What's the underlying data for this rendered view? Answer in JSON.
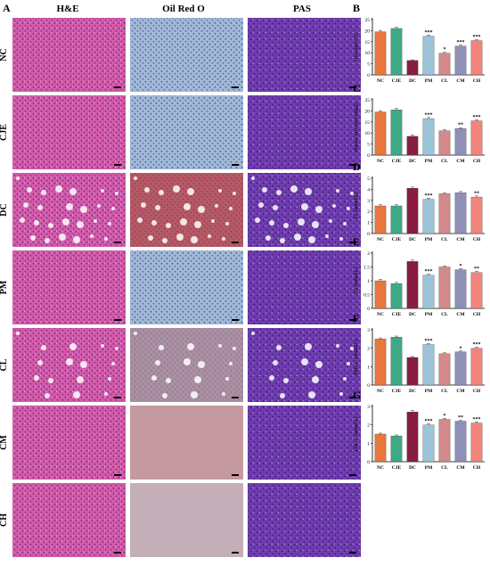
{
  "figure": {
    "panel_letters": [
      "A",
      "B",
      "C",
      "D",
      "E",
      "F",
      "G"
    ],
    "column_titles": [
      "H&E",
      "Oil Red O",
      "PAS"
    ],
    "row_labels": [
      "NC",
      "CJE",
      "DC",
      "PM",
      "CL",
      "CM",
      "CH"
    ]
  },
  "colors": {
    "he": "#d35aa8",
    "he_light": "#f0b8dc",
    "oro": "#9fb8d8",
    "oro_red": "#c0282a",
    "pas": "#6e3cae",
    "pas_light": "#c8a8e4",
    "bars": [
      "#e9763a",
      "#3daa85",
      "#8a1c42",
      "#9cc4d8",
      "#d48a8a",
      "#8f90b8",
      "#f2847c"
    ]
  },
  "chart_data": [
    {
      "panel": "B",
      "type": "bar",
      "categories": [
        "NC",
        "CJE",
        "DC",
        "PM",
        "CL",
        "CM",
        "CH"
      ],
      "values": [
        19.5,
        21,
        6.5,
        17.5,
        9.8,
        13,
        15.5
      ],
      "errors": [
        0.6,
        0.5,
        0.3,
        0.5,
        0.4,
        0.5,
        0.4
      ],
      "significance": [
        "",
        "",
        "",
        "***",
        "*",
        "***",
        "***"
      ],
      "ylabel": "Glycogen (%)",
      "ylim": [
        0,
        25
      ],
      "yticks": [
        0,
        5,
        10,
        15,
        20,
        25
      ]
    },
    {
      "panel": "C",
      "type": "bar",
      "categories": [
        "NC",
        "CJE",
        "DC",
        "PM",
        "CL",
        "CM",
        "CH"
      ],
      "values": [
        19.5,
        20.5,
        8.5,
        16.5,
        11,
        12,
        15.5
      ],
      "errors": [
        0.5,
        0.6,
        0.6,
        0.5,
        0.5,
        0.4,
        0.4
      ],
      "significance": [
        "",
        "",
        "",
        "***",
        "",
        "**",
        "***"
      ],
      "ylabel": "Hepatic glycogen (mg/g)",
      "ylim": [
        0,
        25
      ],
      "yticks": [
        0,
        5,
        10,
        15,
        20,
        25
      ]
    },
    {
      "panel": "D",
      "type": "bar",
      "categories": [
        "NC",
        "CJE",
        "DC",
        "PM",
        "CL",
        "CM",
        "CH"
      ],
      "values": [
        2.5,
        2.5,
        4.1,
        3.1,
        3.6,
        3.7,
        3.3
      ],
      "errors": [
        0.1,
        0.1,
        0.1,
        0.1,
        0.1,
        0.1,
        0.1
      ],
      "significance": [
        "",
        "",
        "",
        "***",
        "",
        "",
        "**"
      ],
      "ylabel": "TC (mmol/L)",
      "ylim": [
        0,
        5
      ],
      "yticks": [
        0,
        1,
        2,
        3,
        4,
        5
      ]
    },
    {
      "panel": "E",
      "type": "bar",
      "categories": [
        "NC",
        "CJE",
        "DC",
        "PM",
        "CL",
        "CM",
        "CH"
      ],
      "values": [
        1.0,
        0.9,
        1.7,
        1.2,
        1.5,
        1.4,
        1.3
      ],
      "errors": [
        0.05,
        0.04,
        0.05,
        0.04,
        0.04,
        0.04,
        0.04
      ],
      "significance": [
        "",
        "",
        "",
        "***",
        "",
        "*",
        "**"
      ],
      "ylabel": "TG (mmol/L)",
      "ylim": [
        0,
        2
      ],
      "yticks": [
        0,
        0.5,
        1,
        1.5,
        2
      ]
    },
    {
      "panel": "F",
      "type": "bar",
      "categories": [
        "NC",
        "CJE",
        "DC",
        "PM",
        "CL",
        "CM",
        "CH"
      ],
      "values": [
        2.5,
        2.6,
        1.5,
        2.2,
        1.7,
        1.8,
        2.0
      ],
      "errors": [
        0.06,
        0.06,
        0.05,
        0.05,
        0.05,
        0.05,
        0.05
      ],
      "significance": [
        "",
        "",
        "",
        "***",
        "",
        "*",
        "***"
      ],
      "ylabel": "HDL-C (mmol/L)",
      "ylim": [
        0,
        3
      ],
      "yticks": [
        0,
        1,
        2,
        3
      ]
    },
    {
      "panel": "G",
      "type": "bar",
      "categories": [
        "NC",
        "CJE",
        "DC",
        "PM",
        "CL",
        "CM",
        "CH"
      ],
      "values": [
        1.5,
        1.4,
        2.7,
        2.0,
        2.3,
        2.2,
        2.1
      ],
      "errors": [
        0.05,
        0.05,
        0.08,
        0.05,
        0.05,
        0.05,
        0.05
      ],
      "significance": [
        "",
        "",
        "",
        "***",
        "*",
        "**",
        "***"
      ],
      "ylabel": "LDL-C (mmol/L)",
      "ylim": [
        0,
        3
      ],
      "yticks": [
        0,
        1,
        2,
        3
      ]
    }
  ]
}
